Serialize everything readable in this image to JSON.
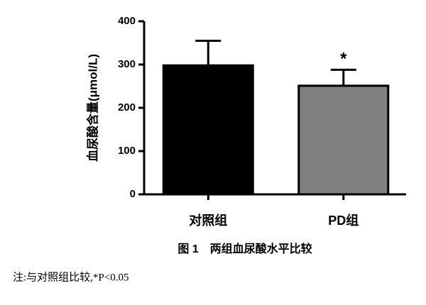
{
  "chart_data": {
    "type": "bar",
    "ylabel": "血尿酸含量(μmol/L)",
    "categories": [
      "对照组",
      "PD组"
    ],
    "values": [
      298,
      251
    ],
    "errors": [
      57,
      37
    ],
    "colors": [
      "#000000",
      "#7f7f7f"
    ],
    "annotations": [
      null,
      "*"
    ],
    "ylim": [
      0,
      400
    ],
    "yticks": [
      0,
      100,
      200,
      300,
      400
    ],
    "caption": "图 1　两组血尿酸水平比较",
    "note": "注:与对照组比较,*P<0.05"
  }
}
